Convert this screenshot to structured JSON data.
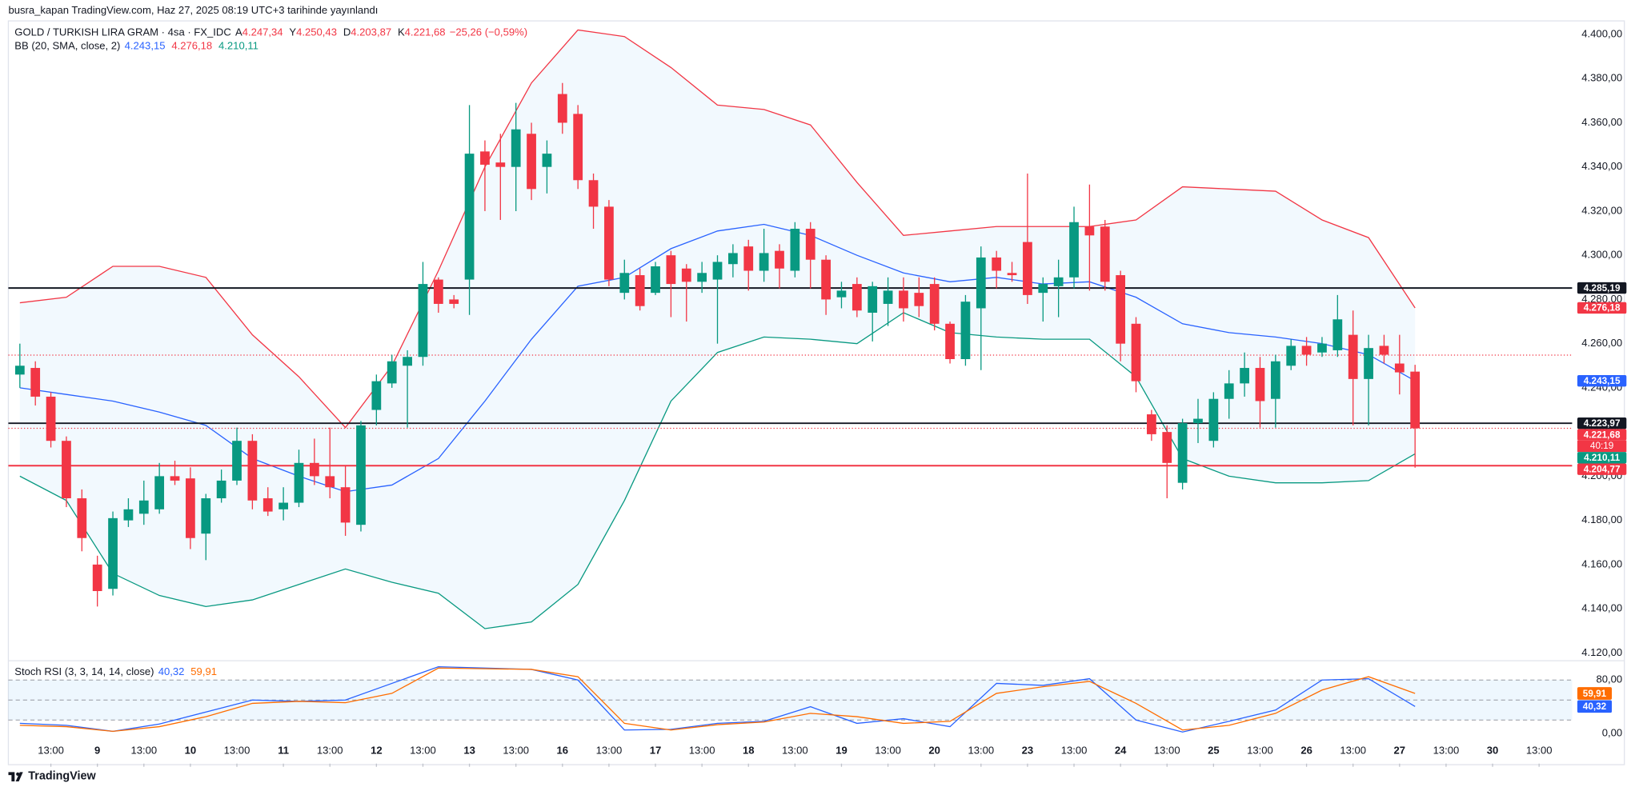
{
  "header": "busra_kapan TradingView.com, Haz 27, 2025 08:19 UTC+3 tarihinde yayınlandı",
  "footer_logo": "TradingView",
  "chart_data": [
    {
      "type": "candlestick",
      "symbol": "GOLD / TURKISH LIRA GRAM · 4sa · FX_IDC",
      "ohlc_legend": [
        {
          "key": "A",
          "label": "4.247,34"
        },
        {
          "key": "Y",
          "label": "4.250,43"
        },
        {
          "key": "D",
          "label": "4.203,87"
        },
        {
          "key": "K",
          "label": "4.221,68"
        }
      ],
      "change": "−25,26 (−0,59%)",
      "up_color": "#089981",
      "down_color": "#f23645",
      "open": [
        4246,
        4249,
        4236,
        4216,
        4190,
        4160,
        4149,
        4180,
        4183,
        4185,
        4200,
        4199,
        4174,
        4190,
        4198,
        4216,
        4190,
        4185,
        4188,
        4206,
        4200,
        4195,
        4178,
        4230,
        4242,
        4250,
        4254,
        4289,
        4280,
        4289,
        4347,
        4342,
        4340,
        4355,
        4340,
        4373,
        4364,
        4334,
        4322,
        4283,
        4291,
        4283,
        4300,
        4294,
        4288,
        4289,
        4296,
        4304,
        4293,
        4302,
        4293,
        4312,
        4298,
        4281,
        4287,
        4274,
        4278,
        4284,
        4283,
        4287,
        4269,
        4253,
        4276,
        4299,
        4292,
        4306,
        4283,
        4286,
        4290,
        4313,
        4313,
        4291,
        4269,
        4228,
        4220,
        4197,
        4224,
        4216,
        4235,
        4242,
        4249,
        4235,
        4250,
        4259,
        4256,
        4257,
        4264,
        4244,
        4259,
        4251,
        4247.34
      ],
      "high": [
        4260,
        4252,
        4238,
        4218,
        4194,
        4164,
        4184,
        4190,
        4198,
        4206,
        4207,
        4204,
        4192,
        4203,
        4222,
        4219,
        4195,
        4195,
        4212,
        4217,
        4222,
        4205,
        4225,
        4246,
        4255,
        4257,
        4297,
        4290,
        4282,
        4368,
        4352,
        4355,
        4369,
        4360,
        4352,
        4378,
        4368,
        4337,
        4325,
        4298,
        4294,
        4297,
        4302,
        4296,
        4297,
        4300,
        4305,
        4307,
        4312,
        4305,
        4315,
        4315,
        4300,
        4288,
        4290,
        4288,
        4290,
        4290,
        4290,
        4290,
        4270,
        4282,
        4304,
        4302,
        4297,
        4337,
        4290,
        4298,
        4322,
        4332,
        4316,
        4293,
        4272,
        4230,
        4223,
        4226,
        4235,
        4238,
        4248,
        4256,
        4254,
        4255,
        4262,
        4263,
        4263,
        4282,
        4275,
        4264,
        4264,
        4264,
        4250.43
      ],
      "low": [
        4240,
        4232,
        4213,
        4186,
        4166,
        4141,
        4146,
        4177,
        4178,
        4183,
        4196,
        4167,
        4162,
        4188,
        4196,
        4185,
        4182,
        4180,
        4186,
        4196,
        4190,
        4173,
        4175,
        4223,
        4240,
        4222,
        4250,
        4274,
        4276,
        4273,
        4320,
        4316,
        4320,
        4325,
        4328,
        4355,
        4330,
        4312,
        4286,
        4280,
        4275,
        4282,
        4272,
        4270,
        4283,
        4260,
        4290,
        4284,
        4288,
        4285,
        4290,
        4285,
        4273,
        4276,
        4272,
        4261,
        4268,
        4270,
        4272,
        4266,
        4251,
        4250,
        4248,
        4285,
        4288,
        4278,
        4270,
        4272,
        4285,
        4284,
        4284,
        4252,
        4238,
        4216,
        4190,
        4194,
        4215,
        4213,
        4226,
        4236,
        4222,
        4222,
        4248,
        4250,
        4254,
        4254,
        4223,
        4223,
        4251,
        4237,
        4203.87
      ],
      "close": [
        4250,
        4236,
        4216,
        4190,
        4172,
        4148,
        4181,
        4185,
        4189,
        4200,
        4198,
        4172,
        4190,
        4198,
        4216,
        4189,
        4184,
        4188,
        4206,
        4200,
        4195,
        4179,
        4223,
        4243,
        4252,
        4254,
        4287,
        4278,
        4278,
        4346,
        4341,
        4340,
        4357,
        4330,
        4346,
        4360,
        4334,
        4322,
        4289,
        4292,
        4277,
        4295,
        4287,
        4288,
        4292,
        4297,
        4301,
        4293,
        4301,
        4294,
        4312,
        4298,
        4280,
        4284,
        4275,
        4286,
        4284,
        4276,
        4277,
        4269,
        4253,
        4279,
        4299,
        4293,
        4291,
        4282,
        4287,
        4290,
        4315,
        4309,
        4288,
        4260,
        4243,
        4219,
        4206,
        4224,
        4226,
        4235,
        4242,
        4249,
        4234,
        4252,
        4259,
        4255,
        4260,
        4271,
        4244,
        4258,
        4255,
        4247,
        4221.68
      ],
      "bb": {
        "title": "BB (20, SMA, close, 2)",
        "legend_values": [
          {
            "label": "4.243,15",
            "color": "#2962ff"
          },
          {
            "label": "4.276,18",
            "color": "#f23645"
          },
          {
            "label": "4.210,11",
            "color": "#089981"
          }
        ],
        "fill": "rgba(33,150,243,0.06)",
        "x": [
          0,
          3,
          6,
          9,
          12,
          15,
          18,
          21,
          24,
          27,
          30,
          33,
          36,
          39,
          42,
          45,
          48,
          51,
          54,
          57,
          60,
          63,
          66,
          69,
          72,
          75,
          78,
          81,
          84,
          87,
          90
        ],
        "upper": {
          "color": "#f23645",
          "values": [
            4278.5,
            4281,
            4295,
            4295,
            4290,
            4264,
            4245,
            4222,
            4250,
            4293,
            4340,
            4378,
            4402,
            4399,
            4385,
            4368,
            4366,
            4359,
            4333,
            4309,
            4311,
            4313,
            4313,
            4313,
            4316,
            4331,
            4330,
            4329,
            4316,
            4308,
            4276.18
          ]
        },
        "basis": {
          "color": "#2962ff",
          "values": [
            4240,
            4237,
            4234,
            4229,
            4223,
            4208,
            4200,
            4193,
            4196,
            4208,
            4234,
            4262,
            4286,
            4290,
            4303,
            4311,
            4314,
            4309,
            4300,
            4292,
            4288,
            4290,
            4287,
            4288,
            4281,
            4269,
            4265,
            4263,
            4260,
            4255,
            4243.15
          ]
        },
        "lower": {
          "color": "#089981",
          "values": [
            4200,
            4189,
            4156,
            4146,
            4141,
            4144,
            4151,
            4158,
            4152,
            4147,
            4131,
            4134,
            4151,
            4189,
            4234,
            4256,
            4263,
            4262,
            4260,
            4274,
            4265,
            4263,
            4262,
            4262,
            4245,
            4208,
            4200,
            4197,
            4197,
            4198,
            4210.11
          ]
        }
      },
      "levels": [
        {
          "value": 4285.19,
          "label": "4.285,19",
          "color": "#131722",
          "line": "solid"
        },
        {
          "value": 4276.18,
          "label": "4.276,18",
          "color": "#f23645"
        },
        {
          "value": 4254.8,
          "color": "#f23645",
          "line": "dotted"
        },
        {
          "value": 4243.15,
          "label": "4.243,15",
          "color": "#2962ff"
        },
        {
          "value": 4223.97,
          "label": "4.223,97",
          "color": "#131722",
          "line": "solid"
        },
        {
          "value": 4221.68,
          "label": "4.221,68",
          "sub_label": "40:19",
          "color": "#f23645",
          "line": "dotted"
        },
        {
          "value": 4210.11,
          "label": "4.210,11",
          "color": "#089981"
        },
        {
          "value": 4204.77,
          "label": "4.204,77",
          "color": "#f23645",
          "line": "solid"
        }
      ],
      "xlim": [
        -0.742,
        100.13
      ],
      "ylim": [
        4116.7,
        4406.1
      ],
      "grid": false,
      "yticks": [
        {
          "value": 4120,
          "label": "4.120,00"
        },
        {
          "value": 4140,
          "label": "4.140,00"
        },
        {
          "value": 4160,
          "label": "4.160,00"
        },
        {
          "value": 4180,
          "label": "4.180,00"
        },
        {
          "value": 4200,
          "label": "4.200,00"
        },
        {
          "value": 4220,
          "label": "4.220,00"
        },
        {
          "value": 4240,
          "label": "4.240,00"
        },
        {
          "value": 4260,
          "label": "4.260,00"
        },
        {
          "value": 4280,
          "label": "4.280,00"
        },
        {
          "value": 4300,
          "label": "4.300,00"
        },
        {
          "value": 4320,
          "label": "4.320,00"
        },
        {
          "value": 4340,
          "label": "4.340,00"
        },
        {
          "value": 4360,
          "label": "4.360,00"
        },
        {
          "value": 4380,
          "label": "4.380,00"
        },
        {
          "value": 4400,
          "label": "4.400,00"
        }
      ],
      "xticks": [
        {
          "value": 2,
          "label": "13:00"
        },
        {
          "value": 5,
          "label": "9"
        },
        {
          "value": 8,
          "label": "13:00"
        },
        {
          "value": 11,
          "label": "10"
        },
        {
          "value": 14,
          "label": "13:00"
        },
        {
          "value": 17,
          "label": "11"
        },
        {
          "value": 20,
          "label": "13:00"
        },
        {
          "value": 23,
          "label": "12"
        },
        {
          "value": 26,
          "label": "13:00"
        },
        {
          "value": 29,
          "label": "13"
        },
        {
          "value": 32,
          "label": "13:00"
        },
        {
          "value": 35,
          "label": "16"
        },
        {
          "value": 38,
          "label": "13:00"
        },
        {
          "value": 41,
          "label": "17"
        },
        {
          "value": 44,
          "label": "13:00"
        },
        {
          "value": 47,
          "label": "18"
        },
        {
          "value": 50,
          "label": "13:00"
        },
        {
          "value": 53,
          "label": "19"
        },
        {
          "value": 56,
          "label": "13:00"
        },
        {
          "value": 59,
          "label": "20"
        },
        {
          "value": 62,
          "label": "13:00"
        },
        {
          "value": 65,
          "label": "23"
        },
        {
          "value": 68,
          "label": "13:00"
        },
        {
          "value": 71,
          "label": "24"
        },
        {
          "value": 74,
          "label": "13:00"
        },
        {
          "value": 77,
          "label": "25"
        },
        {
          "value": 80,
          "label": "13:00"
        },
        {
          "value": 83,
          "label": "26"
        },
        {
          "value": 86,
          "label": "13:00"
        },
        {
          "value": 89,
          "label": "27"
        },
        {
          "value": 92,
          "label": "13:00"
        },
        {
          "value": 95,
          "label": "30"
        },
        {
          "value": 98,
          "label": "13:00"
        }
      ]
    },
    {
      "type": "line",
      "title": "Stoch RSI (3, 3, 14, 14, close)",
      "x": [
        0,
        3,
        6,
        9,
        12,
        15,
        18,
        21,
        24,
        27,
        30,
        33,
        36,
        39,
        42,
        45,
        48,
        51,
        54,
        57,
        60,
        63,
        66,
        69,
        72,
        75,
        78,
        81,
        84,
        87,
        90
      ],
      "series": [
        {
          "color": "#2962ff",
          "legend_label": "40,32",
          "values": [
            15,
            12,
            3,
            14,
            32,
            50,
            48,
            50,
            75,
            100,
            98,
            96,
            80,
            5,
            6,
            15,
            18,
            40,
            15,
            22,
            10,
            75,
            72,
            82,
            20,
            2,
            18,
            35,
            80,
            82,
            40.32
          ]
        },
        {
          "color": "#ff6d00",
          "legend_label": "59,91",
          "values": [
            12,
            10,
            3,
            10,
            25,
            45,
            48,
            46,
            60,
            98,
            97,
            96,
            85,
            15,
            5,
            13,
            17,
            30,
            25,
            15,
            18,
            60,
            70,
            78,
            45,
            5,
            12,
            30,
            65,
            85,
            59.91
          ]
        }
      ],
      "band": [
        20,
        80
      ],
      "band_fill": "rgba(33,150,243,0.08)",
      "hlines": [
        80,
        50,
        20
      ],
      "xlim": [
        -0.742,
        100.13
      ],
      "ylim": [
        -43.9,
        108.2
      ],
      "yticks": [
        {
          "value": 0,
          "label": "0,00"
        },
        {
          "value": 80,
          "label": "80,00"
        }
      ]
    }
  ]
}
